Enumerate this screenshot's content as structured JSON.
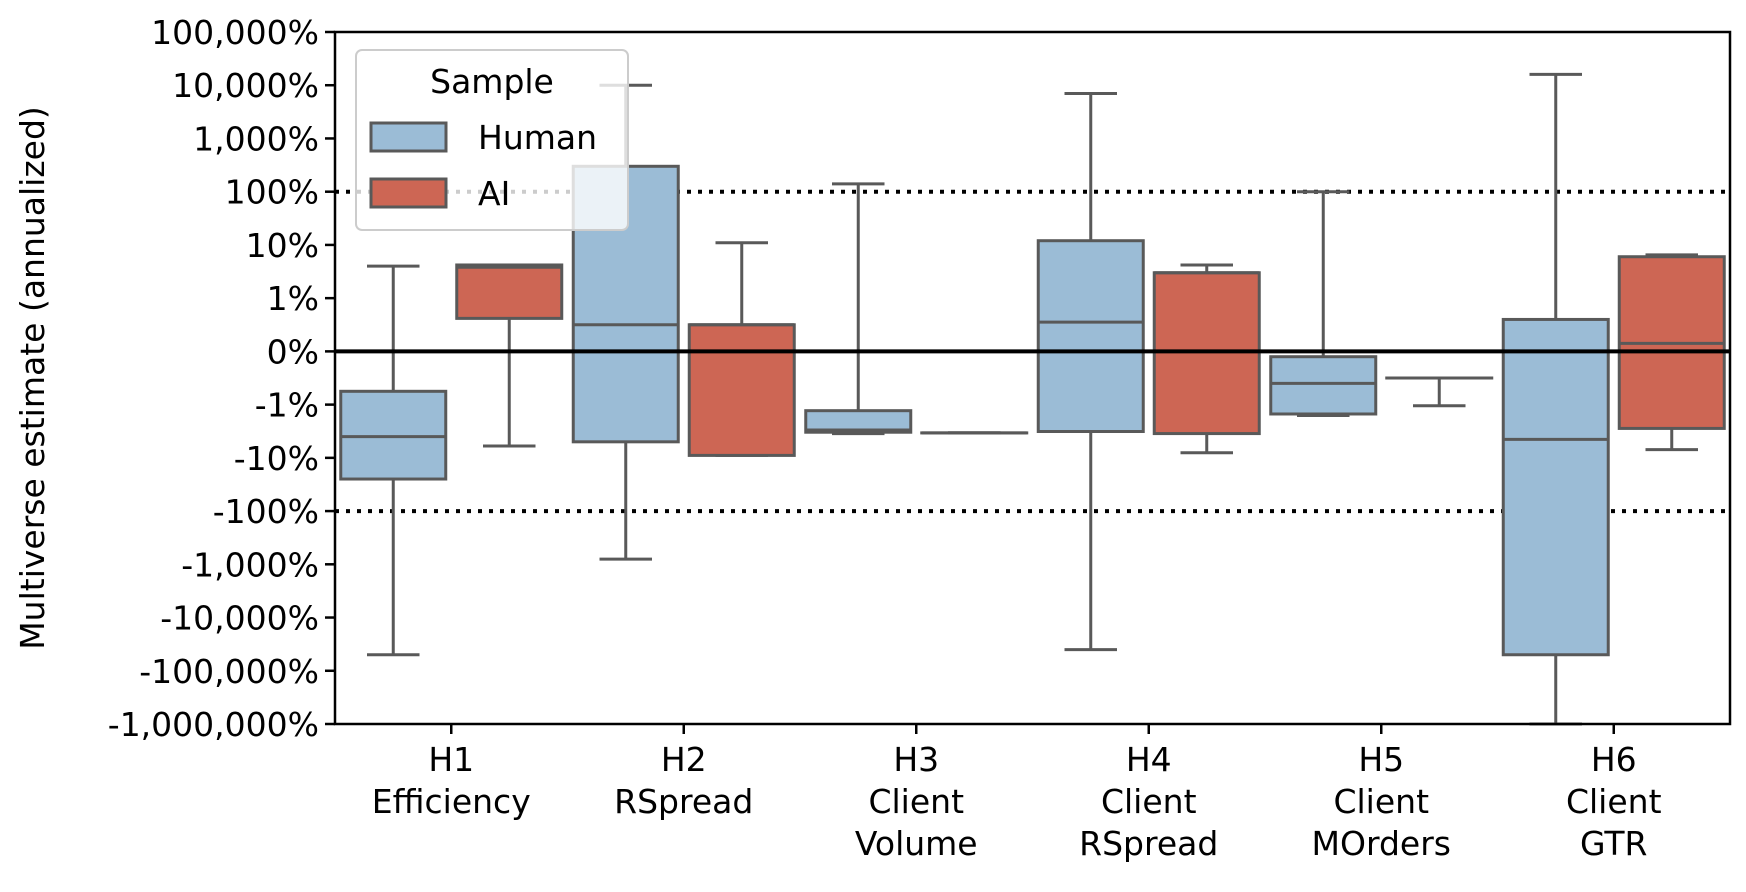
{
  "chart_data": {
    "type": "box",
    "ylabel": "Multiverse estimate (annualized)",
    "y_scale": "symlog (linear between -1% and 1%, log beyond)",
    "yticks": [
      "100,000%",
      "10,000%",
      "1,000%",
      "100%",
      "10%",
      "1%",
      "0%",
      "-1%",
      "-10%",
      "-100%",
      "-1,000%",
      "-10,000%",
      "-100,000%",
      "-1,000,000%"
    ],
    "ytick_values": [
      100000,
      10000,
      1000,
      100,
      10,
      1,
      0,
      -1,
      -10,
      -100,
      -1000,
      -10000,
      -100000,
      -1000000
    ],
    "ylim": [
      -1000000,
      100000
    ],
    "reference_lines": [
      {
        "y": 100,
        "style": "dotted"
      },
      {
        "y": -100,
        "style": "dotted"
      },
      {
        "y": 0,
        "style": "solid"
      }
    ],
    "categories": [
      [
        "H1",
        "Efficiency"
      ],
      [
        "H2",
        "RSpread"
      ],
      [
        "H3",
        "Client",
        "Volume"
      ],
      [
        "H4",
        "Client",
        "RSpread"
      ],
      [
        "H5",
        "Client",
        "MOrders"
      ],
      [
        "H6",
        "Client",
        "GTR"
      ]
    ],
    "legend": {
      "title": "Sample",
      "position": "upper-left"
    },
    "series": [
      {
        "name": "Human",
        "color": "#9bbcd6",
        "boxes": [
          {
            "whislo": -50000,
            "q1": -25,
            "med": -4,
            "q3": -0.75,
            "whishi": 4
          },
          {
            "whislo": -800,
            "q1": -5,
            "med": 0.5,
            "q3": 300,
            "whishi": 10000
          },
          {
            "whislo": -3.5,
            "q1": -3.3,
            "med": -3,
            "q3": -1.3,
            "whishi": 140
          },
          {
            "whislo": -40000,
            "q1": -3.2,
            "med": 0.55,
            "q3": 12,
            "whishi": 7000
          },
          {
            "whislo": -1.6,
            "q1": -1.5,
            "med": -0.6,
            "q3": -0.1,
            "whishi": 100
          },
          {
            "whislo": -1000000,
            "q1": -50000,
            "med": -4.5,
            "q3": 0.6,
            "whishi": 16000
          }
        ]
      },
      {
        "name": "AI",
        "color": "#cd6654",
        "boxes": [
          {
            "whislo": -6,
            "q1": 0.62,
            "med": 3.8,
            "q3": 4.2,
            "whishi": 4.2
          },
          {
            "whislo": -9,
            "q1": -9,
            "med": 0.5,
            "q3": 0.5,
            "whishi": 11
          },
          {
            "whislo": -3.4,
            "q1": -3.4,
            "med": -3.4,
            "q3": -3.4,
            "whishi": -3.4
          },
          {
            "whislo": -8,
            "q1": -3.5,
            "med": 3.0,
            "q3": 3.0,
            "whishi": 4.2
          },
          {
            "whislo": -1.05,
            "q1": -0.5,
            "med": -0.5,
            "q3": -0.5,
            "whishi": -0.5
          },
          {
            "whislo": -7,
            "q1": -2.8,
            "med": 0.15,
            "q3": 6,
            "whishi": 6.5
          }
        ]
      }
    ]
  }
}
